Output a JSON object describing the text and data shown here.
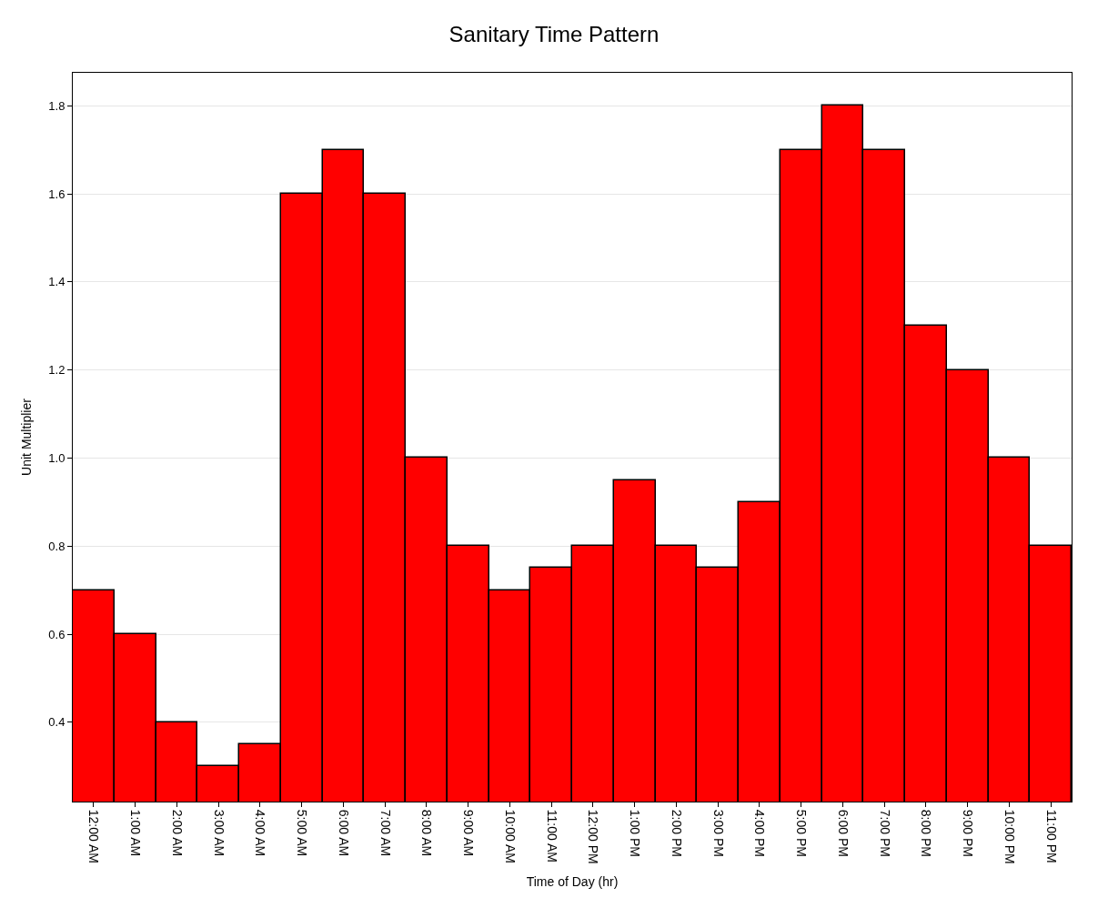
{
  "chart_data": {
    "type": "bar",
    "title": "Sanitary Time Pattern",
    "xlabel": "Time of Day (hr)",
    "ylabel": "Unit Multiplier",
    "categories": [
      "12:00 AM",
      "1:00 AM",
      "2:00 AM",
      "3:00 AM",
      "4:00 AM",
      "5:00 AM",
      "6:00 AM",
      "7:00 AM",
      "8:00 AM",
      "9:00 AM",
      "10:00 AM",
      "11:00 AM",
      "12:00 PM",
      "1:00 PM",
      "2:00 PM",
      "3:00 PM",
      "4:00 PM",
      "5:00 PM",
      "6:00 PM",
      "7:00 PM",
      "8:00 PM",
      "9:00 PM",
      "10:00 PM",
      "11:00 PM"
    ],
    "values": [
      0.7,
      0.6,
      0.4,
      0.3,
      0.35,
      1.6,
      1.7,
      1.6,
      1.0,
      0.8,
      0.7,
      0.75,
      0.8,
      0.95,
      0.8,
      0.75,
      0.9,
      1.7,
      1.8,
      1.7,
      1.3,
      1.2,
      1.0,
      0.8
    ],
    "color": "#ff0000",
    "ylim": [
      0.22,
      1.875
    ],
    "yticks": [
      {
        "value": 0.4,
        "label": "0.4"
      },
      {
        "value": 0.6,
        "label": "0.6"
      },
      {
        "value": 0.8,
        "label": "0.8"
      },
      {
        "value": 1.0,
        "label": "1.0"
      },
      {
        "value": 1.2,
        "label": "1.2"
      },
      {
        "value": 1.4,
        "label": "1.4"
      },
      {
        "value": 1.6,
        "label": "1.6"
      },
      {
        "value": 1.8,
        "label": "1.8"
      }
    ],
    "grid": "y",
    "legend": false
  }
}
